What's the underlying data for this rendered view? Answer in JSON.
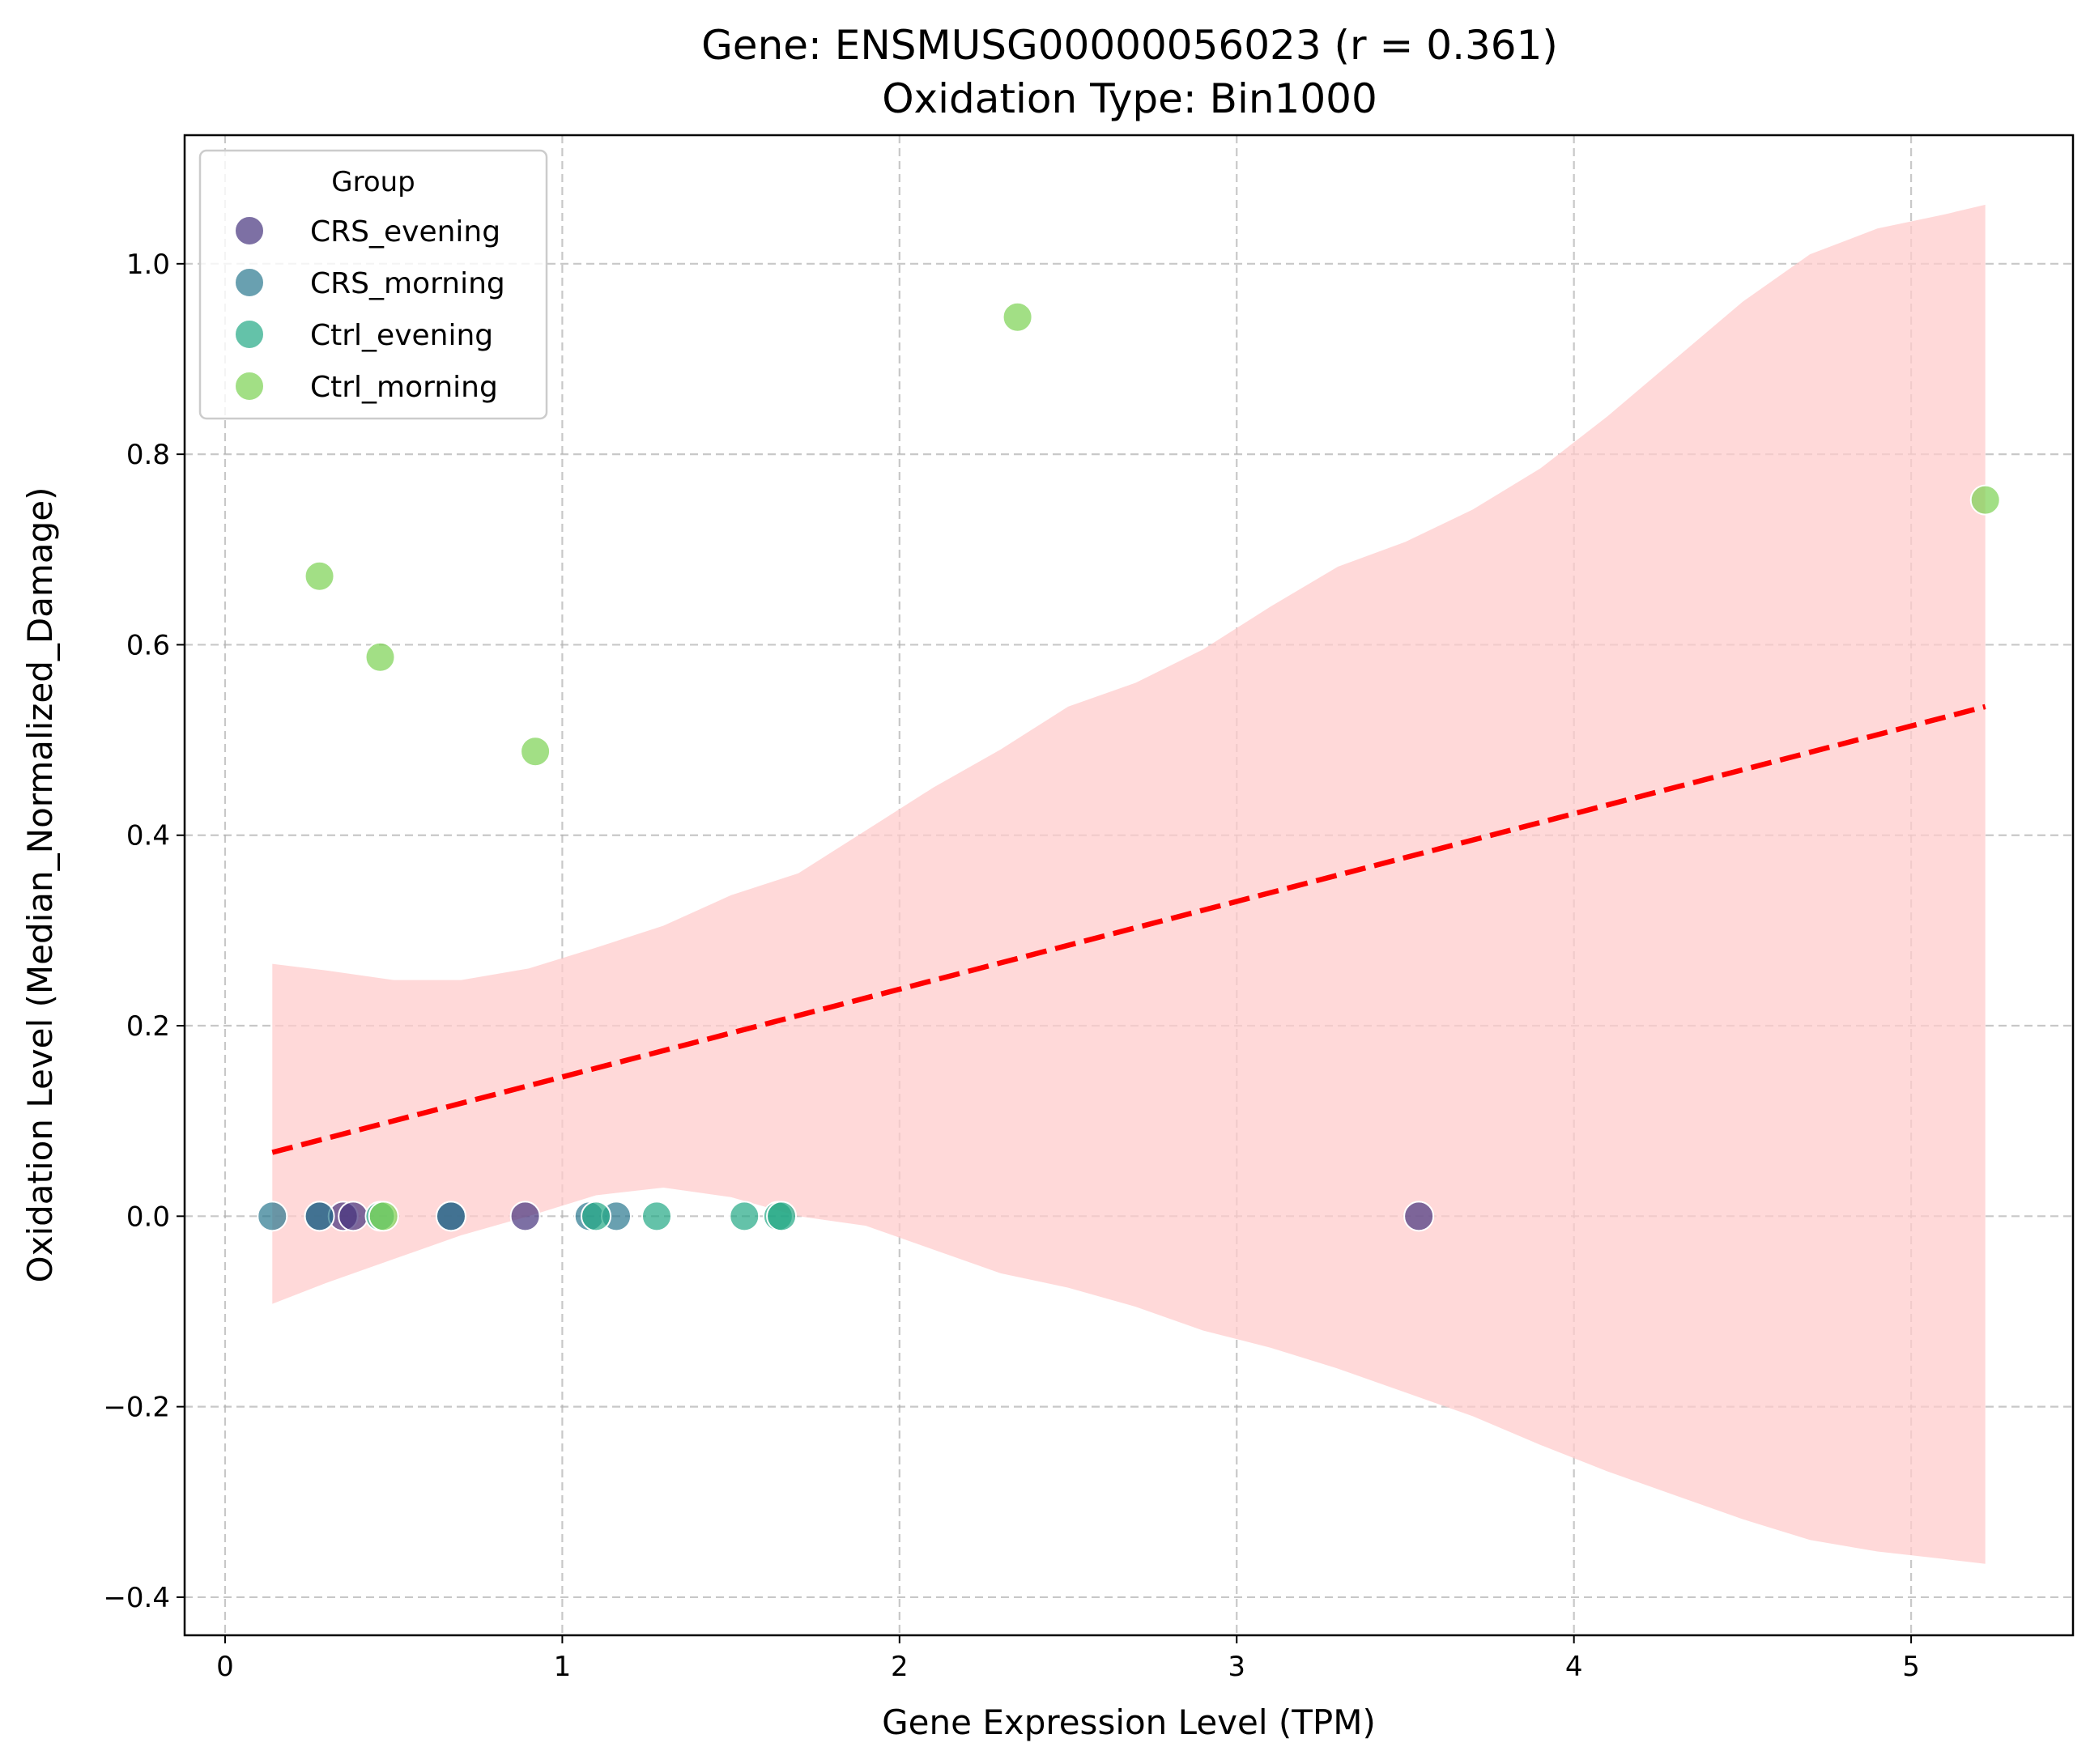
{
  "chart_data": {
    "type": "scatter",
    "title": [
      "Gene: ENSMUSG00000056023 (r = 0.361)",
      "Oxidation Type: Bin1000"
    ],
    "xlabel": "Gene Expression Level (TPM)",
    "ylabel": "Oxidation Level (Median_Normalized_Damage)",
    "xlim": [
      -0.12,
      5.48
    ],
    "ylim": [
      -0.44,
      1.135
    ],
    "xticks": [
      0,
      1,
      2,
      3,
      4,
      5
    ],
    "xtick_labels": [
      "0",
      "1",
      "2",
      "3",
      "4",
      "5"
    ],
    "yticks": [
      -0.4,
      -0.2,
      0.0,
      0.2,
      0.4,
      0.6,
      0.8,
      1.0
    ],
    "ytick_labels": [
      "−0.4",
      "−0.2",
      "0.0",
      "0.2",
      "0.4",
      "0.6",
      "0.8",
      "1.0"
    ],
    "grid": true,
    "legend": {
      "title": "Group",
      "placement": "top-left"
    },
    "series": [
      {
        "name": "CRS_evening",
        "color": "#46337e",
        "x": [
          0.28,
          0.35,
          0.38,
          0.67,
          0.89,
          3.54
        ],
        "y": [
          0.0,
          0.0,
          0.0,
          0.0,
          0.0,
          0.0
        ]
      },
      {
        "name": "CRS_morning",
        "color": "#2a788e",
        "x": [
          0.14,
          0.28,
          0.67,
          1.08,
          1.16
        ],
        "y": [
          0.0,
          0.0,
          0.0,
          0.0,
          0.0
        ]
      },
      {
        "name": "Ctrl_evening",
        "color": "#22a884",
        "x": [
          0.46,
          1.1,
          1.28,
          1.54,
          1.64,
          1.65
        ],
        "y": [
          0.0,
          0.0,
          0.0,
          0.0,
          0.0,
          0.0
        ]
      },
      {
        "name": "Ctrl_morning",
        "color": "#7ad151",
        "x": [
          0.28,
          0.46,
          0.92,
          2.35,
          5.22,
          0.47
        ],
        "y": [
          0.672,
          0.587,
          0.488,
          0.944,
          0.752,
          0.0
        ]
      }
    ],
    "regression": {
      "color": "#ff0000",
      "x": [
        0.14,
        5.22
      ],
      "y": [
        0.067,
        0.535
      ]
    },
    "confidence_band": {
      "color": "#ffcccc",
      "x": [
        0.14,
        0.3,
        0.5,
        0.7,
        0.9,
        1.1,
        1.3,
        1.5,
        1.7,
        1.9,
        2.1,
        2.3,
        2.5,
        2.7,
        2.9,
        3.1,
        3.3,
        3.5,
        3.7,
        3.9,
        4.1,
        4.3,
        4.5,
        4.7,
        4.9,
        5.1,
        5.22
      ],
      "upper": [
        0.265,
        0.258,
        0.248,
        0.248,
        0.26,
        0.282,
        0.305,
        0.337,
        0.36,
        0.405,
        0.45,
        0.49,
        0.535,
        0.56,
        0.595,
        0.64,
        0.682,
        0.708,
        0.742,
        0.785,
        0.84,
        0.9,
        0.96,
        1.01,
        1.037,
        1.052,
        1.062
      ],
      "lower": [
        -0.092,
        -0.07,
        -0.045,
        -0.02,
        0.0,
        0.022,
        0.03,
        0.02,
        0.0,
        -0.01,
        -0.035,
        -0.06,
        -0.075,
        -0.095,
        -0.12,
        -0.138,
        -0.16,
        -0.185,
        -0.21,
        -0.24,
        -0.268,
        -0.293,
        -0.318,
        -0.34,
        -0.352,
        -0.36,
        -0.365
      ]
    }
  }
}
